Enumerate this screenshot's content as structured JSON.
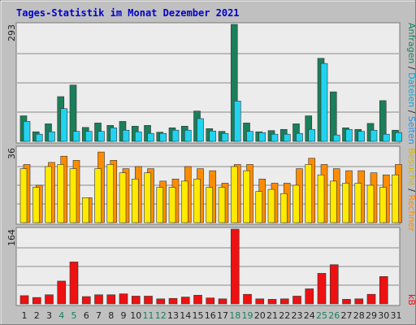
{
  "title": "Tages-Statistik im Monat Dezember 2021",
  "colors": {
    "title": "#0000cc",
    "background": "#c0c0c0",
    "panel": "#ececec",
    "anfragen": "#1a7f5a",
    "dateien": "#22d3f0",
    "seiten": "#2aa8ff",
    "besuche": "#ffea00",
    "rechner": "#ff8c00",
    "kb": "#ee1111",
    "weekend_label": "#1a7f5a",
    "weekday_label": "#222222",
    "gridline": "#8a8a8a"
  },
  "panels": {
    "top_max": "293",
    "mid_max": "36",
    "bot_max": "164"
  },
  "right_labels": {
    "anfragen": "Anfragen",
    "dateien": "Dateien",
    "seiten": "Seiten",
    "besuche": "Besuche",
    "rechner": "Rechner",
    "kb": "kB",
    "separator": " / "
  },
  "chart_data": {
    "type": "bar",
    "title": "Tages-Statistik im Monat Dezember 2021",
    "categories": [
      "1",
      "2",
      "3",
      "4",
      "5",
      "6",
      "7",
      "8",
      "9",
      "10",
      "11",
      "12",
      "13",
      "14",
      "15",
      "16",
      "17",
      "18",
      "19",
      "20",
      "21",
      "22",
      "23",
      "24",
      "25",
      "26",
      "27",
      "28",
      "29",
      "30",
      "31"
    ],
    "weekend_days": [
      "4",
      "5",
      "11",
      "12",
      "18",
      "19",
      "25",
      "26"
    ],
    "panels": [
      {
        "name": "top",
        "ymax": 293,
        "series": [
          {
            "name": "Anfragen",
            "values": [
              64,
              24,
              44,
              112,
              141,
              35,
              46,
              40,
              50,
              38,
              40,
              23,
              34,
              38,
              76,
              32,
              25,
              293,
              46,
              24,
              27,
              30,
              44,
              64,
              208,
              124,
              34,
              30,
              45,
              102,
              28
            ]
          },
          {
            "name": "Dateien",
            "values": [
              50,
              18,
              24,
              82,
              25,
              25,
              25,
              34,
              28,
              24,
              20,
              20,
              28,
              28,
              57,
              26,
              20,
              101,
              25,
              22,
              18,
              18,
              20,
              30,
              195,
              16,
              30,
              25,
              28,
              18,
              22
            ]
          },
          {
            "name": "Seiten",
            "values": [
              0,
              0,
              0,
              0,
              0,
              0,
              0,
              0,
              0,
              0,
              0,
              0,
              0,
              0,
              0,
              0,
              0,
              0,
              0,
              0,
              0,
              0,
              0,
              0,
              0,
              0,
              0,
              0,
              0,
              0,
              0
            ]
          }
        ]
      },
      {
        "name": "middle",
        "ymax": 36,
        "series": [
          {
            "name": "Besuche",
            "values": [
              26,
              17,
              27,
              28,
              26,
              12,
              26,
              28,
              24,
              21,
              24,
              17,
              17,
              20,
              21,
              17,
              17,
              27,
              25,
              15,
              16,
              14,
              18,
              28,
              23,
              20,
              19,
              19,
              18,
              17,
              23
            ]
          },
          {
            "name": "Rechner",
            "values": [
              28,
              18,
              29,
              32,
              30,
              12,
              34,
              30,
              26,
              27,
              26,
              20,
              21,
              27,
              26,
              25,
              19,
              28,
              28,
              21,
              19,
              19,
              26,
              31,
              28,
              26,
              25,
              25,
              24,
              23,
              28
            ]
          }
        ]
      },
      {
        "name": "bottom",
        "ymax": 164,
        "series": [
          {
            "name": "kB",
            "values": [
              18,
              14,
              20,
              50,
              92,
              16,
              20,
              20,
              22,
              17,
              17,
              11,
              12,
              15,
              19,
              13,
              11,
              164,
              21,
              11,
              10,
              11,
              17,
              33,
              67,
              86,
              10,
              11,
              21,
              60,
              0
            ]
          }
        ]
      }
    ]
  }
}
